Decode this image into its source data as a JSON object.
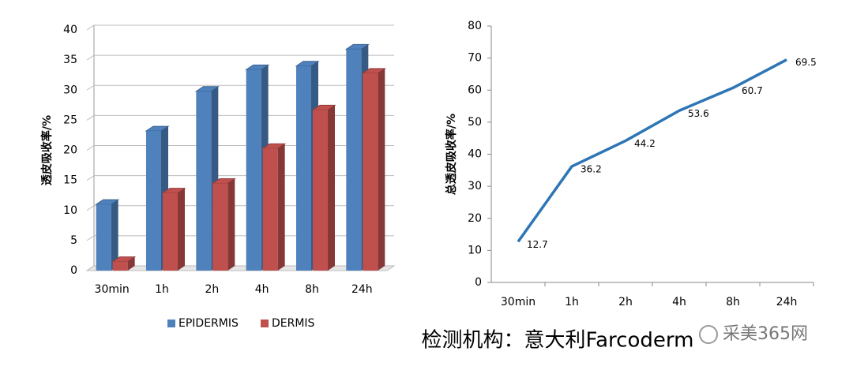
{
  "chart_data": [
    {
      "type": "bar3d",
      "ylabel": "透皮吸收率/%",
      "categories": [
        "30min",
        "1h",
        "2h",
        "4h",
        "8h",
        "24h"
      ],
      "series": [
        {
          "name": "EPIDERMIS",
          "color": "#4f81bd",
          "values": [
            11,
            23.2,
            29.8,
            33.4,
            34,
            36.8
          ]
        },
        {
          "name": "DERMIS",
          "color": "#c0504d",
          "values": [
            1.5,
            12.9,
            14.5,
            20.3,
            26.7,
            32.8
          ]
        }
      ],
      "ylim": [
        0,
        40
      ],
      "yticks": [
        0,
        5,
        10,
        15,
        20,
        25,
        30,
        35,
        40
      ],
      "grid": true,
      "legend": "bottom"
    },
    {
      "type": "line",
      "ylabel": "总透皮吸收率/%",
      "categories": [
        "30min",
        "1h",
        "2h",
        "4h",
        "8h",
        "24h"
      ],
      "values": [
        12.7,
        36.2,
        44.2,
        53.6,
        60.7,
        69.5
      ],
      "color": "#2e75b6",
      "ylim": [
        0,
        80
      ],
      "yticks": [
        0,
        10,
        20,
        30,
        40,
        50,
        60,
        70,
        80
      ],
      "grid": false
    }
  ],
  "caption": "检测机构：意大利Farcoderm",
  "watermark": "采美365网"
}
